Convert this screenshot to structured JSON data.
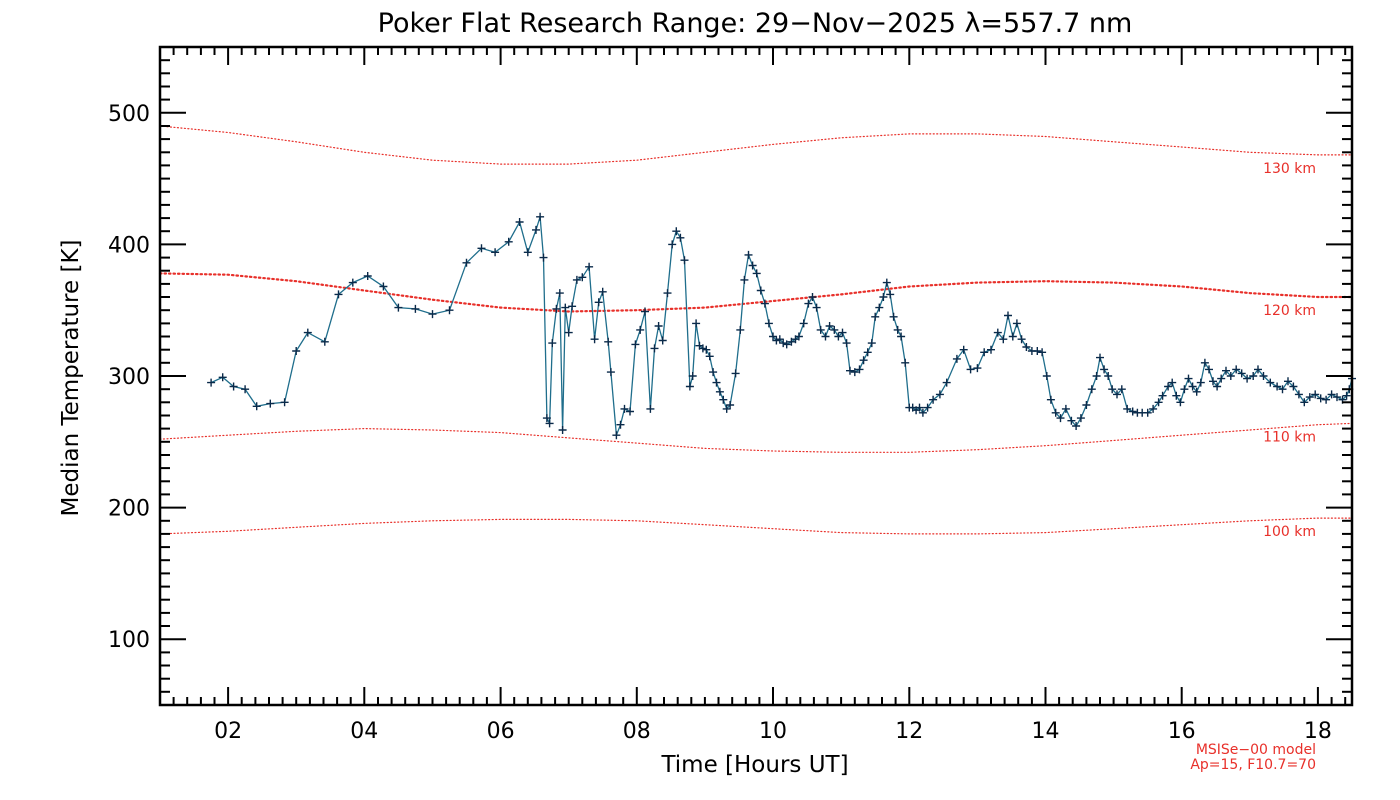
{
  "chart_data": {
    "type": "line",
    "title": "Poker Flat Research Range: 29−Nov−2025 λ=557.7 nm",
    "xlabel": "Time [Hours UT]",
    "ylabel": "Median Temperature [K]",
    "xlim": [
      1,
      18.5
    ],
    "ylim": [
      50,
      550
    ],
    "x_ticks": [
      2,
      4,
      6,
      8,
      10,
      12,
      14,
      16,
      18
    ],
    "x_tick_labels": [
      "02",
      "04",
      "06",
      "08",
      "10",
      "12",
      "14",
      "16",
      "18"
    ],
    "y_ticks": [
      100,
      200,
      300,
      400,
      500
    ],
    "y_tick_labels": [
      "100",
      "200",
      "300",
      "400",
      "500"
    ],
    "grid": false,
    "series": [
      {
        "marker": "plus",
        "color": "#0a2a4a",
        "line_color": "#1f6e8c",
        "points": [
          [
            1.75,
            295
          ],
          [
            1.92,
            299
          ],
          [
            2.08,
            292
          ],
          [
            2.25,
            290
          ],
          [
            2.42,
            277
          ],
          [
            2.62,
            279
          ],
          [
            2.83,
            280
          ],
          [
            3.0,
            319
          ],
          [
            3.17,
            333
          ],
          [
            3.42,
            326
          ],
          [
            3.62,
            362
          ],
          [
            3.83,
            371
          ],
          [
            4.05,
            376
          ],
          [
            4.28,
            368
          ],
          [
            4.5,
            352
          ],
          [
            4.75,
            351
          ],
          [
            5.0,
            347
          ],
          [
            5.25,
            350
          ],
          [
            5.5,
            386
          ],
          [
            5.72,
            397
          ],
          [
            5.92,
            394
          ],
          [
            6.12,
            402
          ],
          [
            6.28,
            417
          ],
          [
            6.4,
            394
          ],
          [
            6.52,
            411
          ],
          [
            6.58,
            421
          ],
          [
            6.63,
            390
          ],
          [
            6.68,
            268
          ],
          [
            6.72,
            264
          ],
          [
            6.76,
            325
          ],
          [
            6.82,
            351
          ],
          [
            6.87,
            363
          ],
          [
            6.91,
            259
          ],
          [
            6.95,
            352
          ],
          [
            7.0,
            333
          ],
          [
            7.05,
            353
          ],
          [
            7.12,
            373
          ],
          [
            7.2,
            375
          ],
          [
            7.3,
            383
          ],
          [
            7.38,
            328
          ],
          [
            7.44,
            356
          ],
          [
            7.5,
            364
          ],
          [
            7.58,
            326
          ],
          [
            7.62,
            303
          ],
          [
            7.7,
            255
          ],
          [
            7.76,
            263
          ],
          [
            7.82,
            275
          ],
          [
            7.9,
            273
          ],
          [
            7.98,
            324
          ],
          [
            8.05,
            335
          ],
          [
            8.12,
            349
          ],
          [
            8.2,
            275
          ],
          [
            8.26,
            321
          ],
          [
            8.32,
            338
          ],
          [
            8.38,
            327
          ],
          [
            8.45,
            363
          ],
          [
            8.52,
            400
          ],
          [
            8.58,
            410
          ],
          [
            8.64,
            405
          ],
          [
            8.7,
            388
          ],
          [
            8.78,
            292
          ],
          [
            8.82,
            300
          ],
          [
            8.87,
            340
          ],
          [
            8.92,
            323
          ],
          [
            8.97,
            321
          ],
          [
            9.02,
            320
          ],
          [
            9.07,
            315
          ],
          [
            9.12,
            303
          ],
          [
            9.17,
            295
          ],
          [
            9.22,
            288
          ],
          [
            9.27,
            282
          ],
          [
            9.32,
            275
          ],
          [
            9.37,
            278
          ],
          [
            9.45,
            302
          ],
          [
            9.52,
            335
          ],
          [
            9.58,
            373
          ],
          [
            9.64,
            392
          ],
          [
            9.7,
            384
          ],
          [
            9.76,
            378
          ],
          [
            9.82,
            365
          ],
          [
            9.88,
            355
          ],
          [
            9.94,
            340
          ],
          [
            10.0,
            330
          ],
          [
            10.05,
            327
          ],
          [
            10.1,
            328
          ],
          [
            10.15,
            325
          ],
          [
            10.2,
            324
          ],
          [
            10.27,
            326
          ],
          [
            10.33,
            328
          ],
          [
            10.38,
            330
          ],
          [
            10.45,
            340
          ],
          [
            10.52,
            355
          ],
          [
            10.58,
            360
          ],
          [
            10.64,
            352
          ],
          [
            10.7,
            335
          ],
          [
            10.77,
            330
          ],
          [
            10.83,
            338
          ],
          [
            10.9,
            335
          ],
          [
            10.96,
            330
          ],
          [
            11.02,
            333
          ],
          [
            11.08,
            325
          ],
          [
            11.13,
            304
          ],
          [
            11.2,
            303
          ],
          [
            11.27,
            305
          ],
          [
            11.33,
            312
          ],
          [
            11.39,
            318
          ],
          [
            11.45,
            325
          ],
          [
            11.5,
            345
          ],
          [
            11.56,
            352
          ],
          [
            11.62,
            360
          ],
          [
            11.67,
            371
          ],
          [
            11.72,
            362
          ],
          [
            11.77,
            345
          ],
          [
            11.83,
            335
          ],
          [
            11.88,
            330
          ],
          [
            11.94,
            310
          ],
          [
            12.0,
            276
          ],
          [
            12.05,
            276
          ],
          [
            12.1,
            274
          ],
          [
            12.15,
            276
          ],
          [
            12.2,
            272
          ],
          [
            12.27,
            276
          ],
          [
            12.35,
            282
          ],
          [
            12.45,
            286
          ],
          [
            12.55,
            295
          ],
          [
            12.7,
            313
          ],
          [
            12.8,
            320
          ],
          [
            12.9,
            305
          ],
          [
            13.0,
            306
          ],
          [
            13.1,
            318
          ],
          [
            13.2,
            320
          ],
          [
            13.3,
            333
          ],
          [
            13.38,
            328
          ],
          [
            13.45,
            346
          ],
          [
            13.52,
            330
          ],
          [
            13.58,
            340
          ],
          [
            13.65,
            328
          ],
          [
            13.72,
            322
          ],
          [
            13.8,
            319
          ],
          [
            13.88,
            319
          ],
          [
            13.95,
            318
          ],
          [
            14.02,
            300
          ],
          [
            14.08,
            282
          ],
          [
            14.15,
            272
          ],
          [
            14.22,
            268
          ],
          [
            14.3,
            275
          ],
          [
            14.38,
            266
          ],
          [
            14.45,
            262
          ],
          [
            14.52,
            268
          ],
          [
            14.6,
            278
          ],
          [
            14.68,
            290
          ],
          [
            14.75,
            300
          ],
          [
            14.8,
            314
          ],
          [
            14.86,
            305
          ],
          [
            14.92,
            300
          ],
          [
            14.98,
            290
          ],
          [
            15.05,
            286
          ],
          [
            15.12,
            290
          ],
          [
            15.2,
            275
          ],
          [
            15.28,
            273
          ],
          [
            15.35,
            272
          ],
          [
            15.42,
            272
          ],
          [
            15.5,
            272
          ],
          [
            15.58,
            275
          ],
          [
            15.66,
            280
          ],
          [
            15.72,
            285
          ],
          [
            15.8,
            292
          ],
          [
            15.86,
            295
          ],
          [
            15.92,
            285
          ],
          [
            15.98,
            280
          ],
          [
            16.04,
            290
          ],
          [
            16.1,
            298
          ],
          [
            16.16,
            292
          ],
          [
            16.22,
            288
          ],
          [
            16.28,
            295
          ],
          [
            16.34,
            310
          ],
          [
            16.4,
            305
          ],
          [
            16.46,
            296
          ],
          [
            16.52,
            292
          ],
          [
            16.58,
            298
          ],
          [
            16.65,
            304
          ],
          [
            16.72,
            300
          ],
          [
            16.8,
            305
          ],
          [
            16.88,
            302
          ],
          [
            16.96,
            298
          ],
          [
            17.05,
            300
          ],
          [
            17.12,
            305
          ],
          [
            17.2,
            300
          ],
          [
            17.3,
            295
          ],
          [
            17.4,
            292
          ],
          [
            17.48,
            290
          ],
          [
            17.56,
            296
          ],
          [
            17.64,
            292
          ],
          [
            17.72,
            286
          ],
          [
            17.8,
            280
          ],
          [
            17.88,
            284
          ],
          [
            17.96,
            286
          ],
          [
            18.04,
            283
          ],
          [
            18.12,
            282
          ],
          [
            18.2,
            286
          ],
          [
            18.28,
            284
          ],
          [
            18.36,
            282
          ],
          [
            18.42,
            285
          ],
          [
            18.46,
            290
          ],
          [
            18.5,
            298
          ]
        ]
      }
    ],
    "model_curves": [
      {
        "label": "130 km",
        "color": "#e8302a",
        "style": "dotted",
        "x": [
          1,
          2,
          3,
          4,
          5,
          6,
          7,
          8,
          9,
          10,
          11,
          12,
          13,
          14,
          15,
          16,
          17,
          18,
          18.5
        ],
        "y": [
          490,
          485,
          478,
          470,
          464,
          461,
          461,
          464,
          470,
          476,
          481,
          484,
          484,
          482,
          478,
          474,
          470,
          468,
          468
        ]
      },
      {
        "label": "120 km",
        "color": "#e8302a",
        "style": "dotted-heavy",
        "x": [
          1,
          2,
          3,
          4,
          5,
          6,
          7,
          8,
          9,
          10,
          11,
          12,
          13,
          14,
          15,
          16,
          17,
          18,
          18.5
        ],
        "y": [
          378,
          377,
          372,
          365,
          358,
          352,
          349,
          350,
          352,
          357,
          362,
          368,
          371,
          372,
          371,
          368,
          363,
          360,
          360
        ]
      },
      {
        "label": "110 km",
        "color": "#e8302a",
        "style": "dotted",
        "x": [
          1,
          2,
          3,
          4,
          5,
          6,
          7,
          8,
          9,
          10,
          11,
          12,
          13,
          14,
          15,
          16,
          17,
          18,
          18.5
        ],
        "y": [
          252,
          255,
          258,
          260,
          259,
          257,
          253,
          249,
          245,
          243,
          242,
          242,
          244,
          247,
          251,
          255,
          259,
          263,
          264
        ]
      },
      {
        "label": "100 km",
        "color": "#e8302a",
        "style": "dotted",
        "x": [
          1,
          2,
          3,
          4,
          5,
          6,
          7,
          8,
          9,
          10,
          11,
          12,
          13,
          14,
          15,
          16,
          17,
          18,
          18.5
        ],
        "y": [
          180,
          182,
          185,
          188,
          190,
          191,
          191,
          190,
          187,
          184,
          181,
          180,
          180,
          181,
          184,
          187,
          190,
          192,
          192
        ]
      }
    ],
    "annotations": [
      "MSISe−00 model",
      "Ap=15, F10.7=70"
    ]
  }
}
